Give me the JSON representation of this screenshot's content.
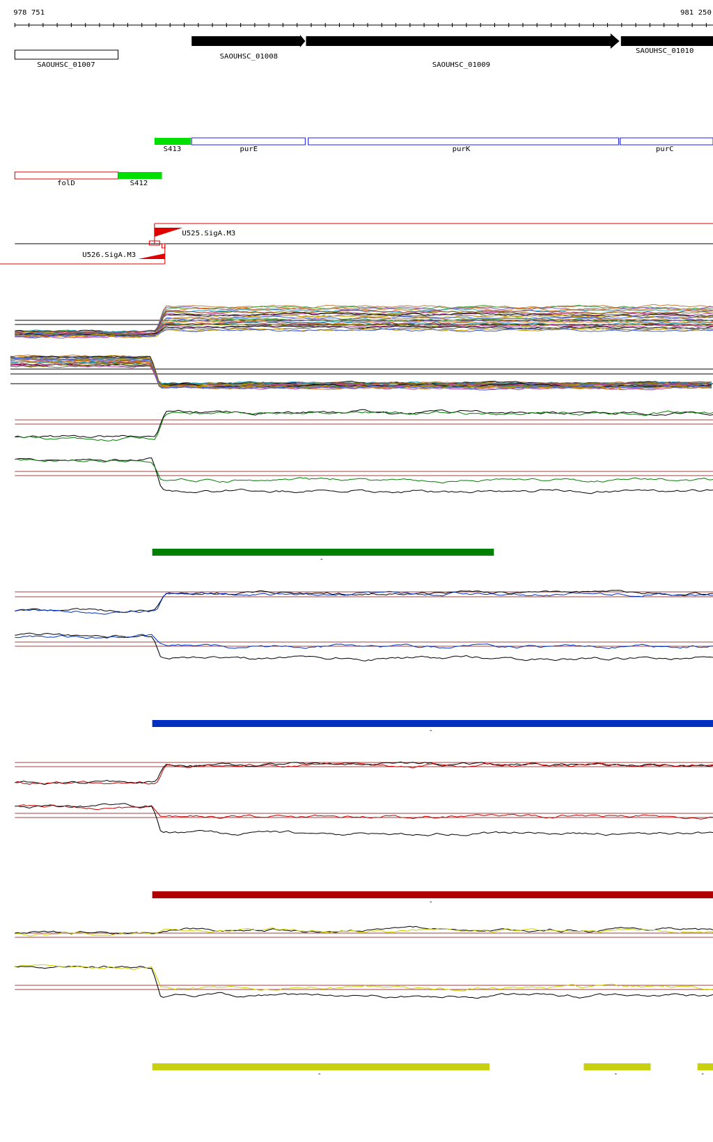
{
  "coordinates": {
    "start": "978 751",
    "end": "981 250"
  },
  "genes": [
    {
      "label": "SAOUHSC_01007"
    },
    {
      "label": "SAOUHSC_01008"
    },
    {
      "label": "SAOUHSC_01009"
    },
    {
      "label": "SAOUHSC_01010"
    }
  ],
  "features": [
    {
      "label": "S413"
    },
    {
      "label": "purE"
    },
    {
      "label": "purK"
    },
    {
      "label": "purC"
    },
    {
      "label": "folD"
    },
    {
      "label": "S412"
    }
  ],
  "promoters": [
    {
      "label": "U525.SigA.M3"
    },
    {
      "label": "U526.SigA.M3"
    }
  ],
  "segments": [
    {
      "strand": "-"
    },
    {
      "strand": "-"
    },
    {
      "strand": "-"
    },
    {
      "strand": "-"
    },
    {
      "strand": "-"
    },
    {
      "strand": "-"
    }
  ]
}
